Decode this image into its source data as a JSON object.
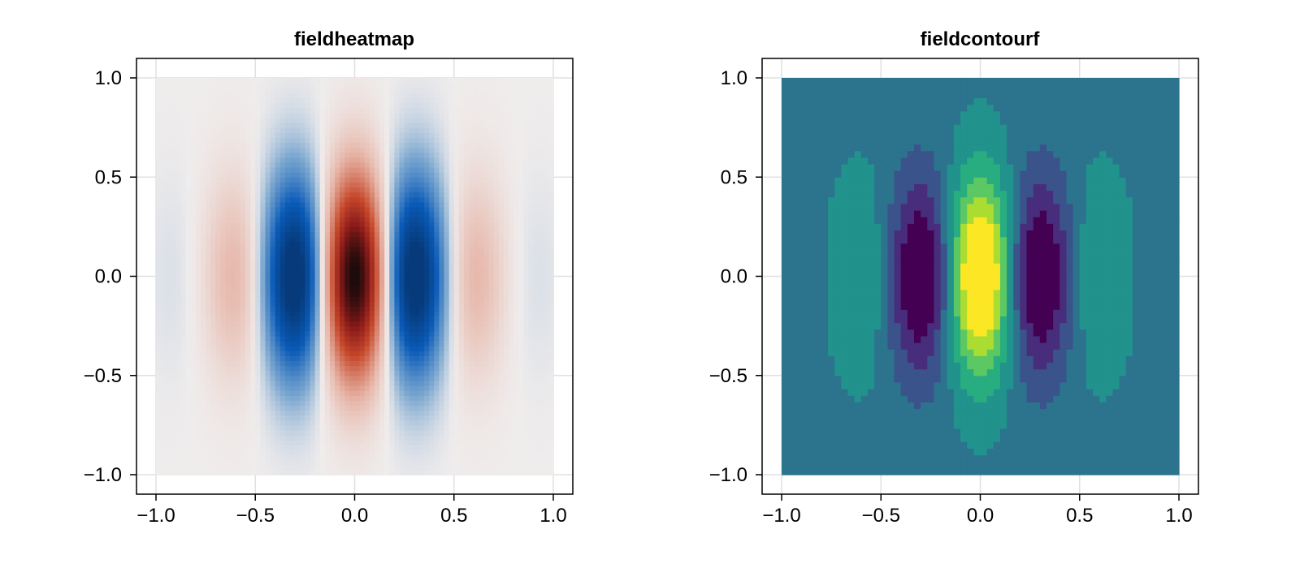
{
  "chart_data": [
    {
      "type": "heatmap",
      "title": "fieldheatmap",
      "xlim": [
        -1.0,
        1.0
      ],
      "ylim": [
        -1.0,
        1.0
      ],
      "x_ticks": [
        -1.0,
        -0.5,
        0.0,
        0.5,
        1.0
      ],
      "y_ticks": [
        -1.0,
        -0.5,
        0.0,
        0.5,
        1.0
      ],
      "x_tick_labels": [
        "−1.0",
        "−0.5",
        "0.0",
        "0.5",
        "1.0"
      ],
      "y_tick_labels": [
        "−1.0",
        "−0.5",
        "0.0",
        "0.5",
        "1.0"
      ],
      "grid": true,
      "colormap": "diverging red-blue (vik/balance style)",
      "field": "cos(3πx)·exp(−4x² − 4y²) ; peak at (0,0), negative lobes near x=±0.3, weak positive lobes near x=±0.65",
      "value_range": [
        -0.6,
        1.0
      ],
      "colors": {
        "negative": "#0a5bb8",
        "zero": "#efecec",
        "positive": "#c6482a",
        "peak": "#1a0a0a"
      }
    },
    {
      "type": "heatmap",
      "title": "fieldcontourf",
      "xlim": [
        -1.0,
        1.0
      ],
      "ylim": [
        -1.0,
        1.0
      ],
      "x_ticks": [
        -1.0,
        -0.5,
        0.0,
        0.5,
        1.0
      ],
      "y_ticks": [
        -1.0,
        -0.5,
        0.0,
        0.5,
        1.0
      ],
      "x_tick_labels": [
        "−1.0",
        "−0.5",
        "0.0",
        "0.5",
        "1.0"
      ],
      "y_tick_labels": [
        "−1.0",
        "−0.5",
        "0.0",
        "0.5",
        "1.0"
      ],
      "grid": true,
      "colormap": "viridis",
      "field": "cos(3πx)·exp(−4x² − 4y²) filled contours",
      "levels": 10,
      "value_range": [
        -0.6,
        1.0
      ],
      "colors": {
        "low": "#440154",
        "high": "#fde725"
      }
    }
  ]
}
